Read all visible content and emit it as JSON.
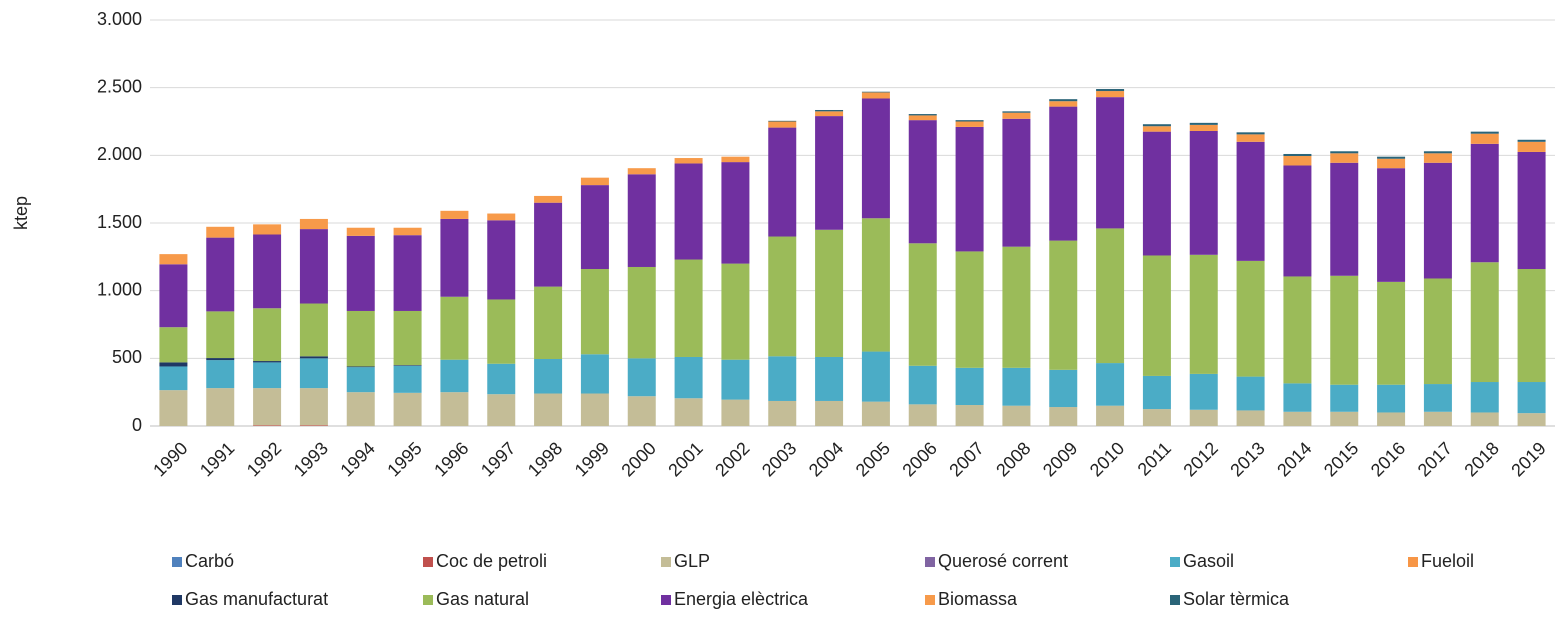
{
  "chart_data": {
    "type": "stacked_bar",
    "ylabel": "ktep",
    "categories": [
      "1990",
      "1991",
      "1992",
      "1993",
      "1994",
      "1995",
      "1996",
      "1997",
      "1998",
      "1999",
      "2000",
      "2001",
      "2002",
      "2003",
      "2004",
      "2005",
      "2006",
      "2007",
      "2008",
      "2009",
      "2010",
      "2011",
      "2012",
      "2013",
      "2014",
      "2015",
      "2016",
      "2017",
      "2018",
      "2019"
    ],
    "ylim": [
      0,
      3000
    ],
    "yticks": [
      0,
      {
        "value": 500,
        "label": "500"
      },
      {
        "value": 1000,
        "label": "1.000"
      },
      {
        "value": 1500,
        "label": "1.500"
      },
      {
        "value": 2000,
        "label": "2.000"
      },
      {
        "value": 2500,
        "label": "2.500"
      },
      {
        "value": 3000,
        "label": "3.000"
      }
    ],
    "grid": true,
    "legend": "bottom",
    "series": [
      {
        "name": "Carbó",
        "color": "#4f81bd",
        "values": [
          0,
          0,
          0,
          0,
          0,
          0,
          0,
          0,
          0,
          0,
          0,
          0,
          0,
          0,
          0,
          0,
          0,
          0,
          0,
          0,
          0,
          0,
          0,
          0,
          0,
          0,
          0,
          0,
          0,
          0
        ]
      },
      {
        "name": "Coc de petroli",
        "color": "#c0504d",
        "values": [
          0,
          0,
          5,
          5,
          0,
          0,
          0,
          0,
          0,
          0,
          0,
          0,
          0,
          0,
          0,
          0,
          0,
          0,
          0,
          0,
          0,
          0,
          0,
          0,
          0,
          0,
          0,
          0,
          0,
          0
        ]
      },
      {
        "name": "GLP",
        "color": "#c4bd97",
        "values": [
          265,
          280,
          275,
          275,
          250,
          245,
          250,
          235,
          240,
          240,
          220,
          205,
          195,
          185,
          185,
          180,
          160,
          155,
          150,
          140,
          150,
          125,
          120,
          115,
          105,
          105,
          100,
          105,
          100,
          95
        ]
      },
      {
        "name": "Querosé corrent",
        "color": "#8064a2",
        "values": [
          0,
          0,
          0,
          0,
          0,
          0,
          0,
          0,
          0,
          0,
          0,
          0,
          0,
          0,
          0,
          0,
          0,
          0,
          0,
          0,
          0,
          0,
          0,
          0,
          0,
          0,
          0,
          0,
          0,
          0
        ]
      },
      {
        "name": "Gasoil",
        "color": "#4bacc6",
        "values": [
          175,
          207,
          190,
          220,
          185,
          200,
          240,
          225,
          255,
          290,
          280,
          305,
          295,
          330,
          325,
          370,
          285,
          275,
          280,
          275,
          315,
          245,
          265,
          250,
          210,
          200,
          205,
          205,
          225,
          230
        ]
      },
      {
        "name": "Fueloil",
        "color": "#f79646",
        "values": [
          0,
          0,
          0,
          0,
          0,
          0,
          0,
          0,
          0,
          0,
          0,
          0,
          0,
          0,
          0,
          0,
          0,
          0,
          0,
          0,
          0,
          0,
          0,
          0,
          0,
          0,
          0,
          0,
          0,
          0
        ]
      },
      {
        "name": "Gas manufacturat",
        "color": "#1f3864",
        "values": [
          30,
          15,
          10,
          15,
          5,
          5,
          0,
          0,
          0,
          0,
          0,
          0,
          0,
          0,
          0,
          0,
          0,
          0,
          0,
          0,
          0,
          0,
          0,
          0,
          0,
          0,
          0,
          0,
          0,
          0
        ]
      },
      {
        "name": "Gas natural",
        "color": "#9bbb59",
        "values": [
          260,
          345,
          390,
          390,
          410,
          400,
          465,
          475,
          535,
          630,
          675,
          720,
          710,
          885,
          940,
          985,
          905,
          860,
          895,
          955,
          995,
          890,
          880,
          855,
          790,
          805,
          760,
          780,
          885,
          835
        ]
      },
      {
        "name": "Energia elèctrica",
        "color": "#7030a0",
        "values": [
          465,
          545,
          545,
          550,
          555,
          560,
          575,
          585,
          620,
          620,
          685,
          710,
          750,
          805,
          840,
          885,
          910,
          920,
          945,
          990,
          970,
          915,
          915,
          880,
          820,
          835,
          840,
          855,
          875,
          865
        ]
      },
      {
        "name": "Biomassa",
        "color": "#f79a4a",
        "values": [
          75,
          80,
          75,
          75,
          60,
          55,
          60,
          50,
          50,
          55,
          45,
          40,
          40,
          45,
          35,
          45,
          35,
          40,
          45,
          40,
          45,
          40,
          45,
          55,
          70,
          70,
          70,
          70,
          75,
          75
        ]
      },
      {
        "name": "Solar tèrmica",
        "color": "#2a6478",
        "values": [
          0,
          0,
          0,
          0,
          0,
          0,
          0,
          0,
          0,
          0,
          0,
          0,
          0,
          5,
          10,
          5,
          10,
          10,
          10,
          15,
          15,
          15,
          15,
          15,
          15,
          15,
          15,
          15,
          15,
          15
        ]
      }
    ]
  }
}
